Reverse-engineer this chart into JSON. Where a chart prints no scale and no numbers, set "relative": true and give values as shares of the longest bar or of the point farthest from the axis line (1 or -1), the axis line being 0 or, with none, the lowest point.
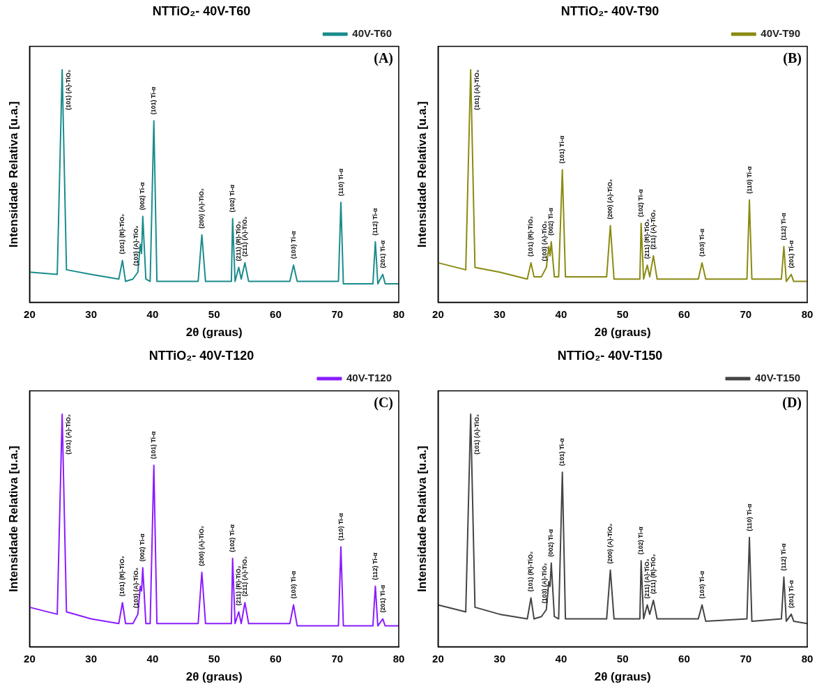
{
  "chart_data": [
    {
      "type": "line",
      "title": "NTTiO₂- 40V-T60",
      "xlabel": "2θ (graus)",
      "ylabel": "Intensidade Relativa [u.a.]",
      "relative": true,
      "xlim": [
        20,
        80
      ],
      "xticks": [
        20,
        30,
        40,
        50,
        60,
        70,
        80
      ],
      "legend": "top right",
      "marker": "none",
      "x": [
        20,
        24.5,
        25.3,
        26,
        30,
        34.5,
        35.1,
        35.6,
        36.8,
        37.6,
        38.0,
        38.2,
        38.4,
        38.9,
        39.6,
        40.2,
        40.7,
        47.4,
        48.0,
        48.6,
        52.8,
        53.0,
        53.4,
        54.0,
        54.4,
        55.0,
        55.6,
        62.3,
        62.9,
        63.5,
        70.2,
        70.6,
        71.0,
        75.8,
        76.2,
        76.6,
        77.4,
        77.8,
        80
      ],
      "series": [
        {
          "name": "40V-T60",
          "color": "#1a8c8c",
          "values": [
            0.13,
            0.12,
            1.0,
            0.14,
            0.12,
            0.1,
            0.18,
            0.09,
            0.1,
            0.13,
            0.25,
            0.21,
            0.37,
            0.1,
            0.09,
            0.78,
            0.09,
            0.09,
            0.29,
            0.09,
            0.09,
            0.36,
            0.09,
            0.15,
            0.1,
            0.17,
            0.09,
            0.09,
            0.16,
            0.09,
            0.09,
            0.43,
            0.08,
            0.08,
            0.26,
            0.08,
            0.12,
            0.08,
            0.08
          ]
        }
      ],
      "annotations": [
        "(A)",
        {
          "text": "(101) (A)-TiO₂",
          "x": 25.3,
          "y": 1.0
        },
        {
          "text": "(101) (R)-TiO₂",
          "x": 35.1,
          "y": 0.18
        },
        {
          "text": "(103) (A)-TiO₂",
          "x": 37.6,
          "y": 0.13
        },
        {
          "text": "(002) Ti-α",
          "x": 38.4,
          "y": 0.37
        },
        {
          "text": "(101) Ti-α",
          "x": 40.2,
          "y": 0.78
        },
        {
          "text": "(200) (A)-TiO₂",
          "x": 48.0,
          "y": 0.29
        },
        {
          "text": "(102) Ti-α",
          "x": 53.0,
          "y": 0.36
        },
        {
          "text": "(211) (R)-TiO₂",
          "x": 54.0,
          "y": 0.15
        },
        {
          "text": "(211) (A)-TiO₂",
          "x": 55.0,
          "y": 0.17
        },
        {
          "text": "(103) Ti-α",
          "x": 62.9,
          "y": 0.16
        },
        {
          "text": "(110) Ti-α",
          "x": 70.6,
          "y": 0.43
        },
        {
          "text": "(112) Ti-α",
          "x": 76.2,
          "y": 0.26
        },
        {
          "text": "(201) Ti-α",
          "x": 77.4,
          "y": 0.12
        }
      ]
    },
    {
      "type": "line",
      "title": "NTTiO₂- 40V-T90",
      "xlabel": "2θ (graus)",
      "ylabel": "Intensidade Relativa [u.a.]",
      "relative": true,
      "xlim": [
        20,
        80
      ],
      "xticks": [
        20,
        30,
        40,
        50,
        60,
        70,
        80
      ],
      "legend": "top right",
      "marker": "none",
      "x": [
        20,
        24.5,
        25.3,
        26,
        30,
        34.5,
        35.1,
        35.6,
        36.8,
        37.6,
        38.0,
        38.2,
        38.4,
        38.9,
        39.6,
        40.2,
        40.7,
        47.4,
        48.0,
        48.6,
        52.8,
        53.0,
        53.4,
        54.0,
        54.4,
        55.0,
        55.6,
        62.3,
        62.9,
        63.5,
        70.2,
        70.6,
        71.0,
        75.8,
        76.2,
        76.6,
        77.4,
        77.8,
        80
      ],
      "series": [
        {
          "name": "40V-T90",
          "color": "#8a8a12",
          "values": [
            0.17,
            0.14,
            1.0,
            0.15,
            0.13,
            0.1,
            0.17,
            0.11,
            0.11,
            0.15,
            0.24,
            0.2,
            0.26,
            0.11,
            0.11,
            0.57,
            0.11,
            0.11,
            0.33,
            0.1,
            0.1,
            0.34,
            0.1,
            0.16,
            0.11,
            0.2,
            0.1,
            0.1,
            0.17,
            0.1,
            0.1,
            0.44,
            0.1,
            0.1,
            0.24,
            0.09,
            0.12,
            0.09,
            0.09
          ]
        }
      ],
      "annotations": [
        "(B)",
        {
          "text": "(101) (A)-TiO₂",
          "x": 25.3,
          "y": 1.0
        },
        {
          "text": "(101) (R)-TiO₂",
          "x": 35.1,
          "y": 0.17
        },
        {
          "text": "(103) (A)-TiO₂",
          "x": 37.6,
          "y": 0.15
        },
        {
          "text": "(002) Ti-α",
          "x": 38.4,
          "y": 0.26
        },
        {
          "text": "(101) Ti-α",
          "x": 40.2,
          "y": 0.57
        },
        {
          "text": "(200) (A)-TiO₂",
          "x": 48.0,
          "y": 0.33
        },
        {
          "text": "(102) Ti-α",
          "x": 53.0,
          "y": 0.34
        },
        {
          "text": "(211) (R)-TiO₂",
          "x": 54.0,
          "y": 0.16
        },
        {
          "text": "(211) (A)-TiO₂",
          "x": 55.0,
          "y": 0.2
        },
        {
          "text": "(103) Ti-α",
          "x": 62.9,
          "y": 0.17
        },
        {
          "text": "(110) Ti-α",
          "x": 70.6,
          "y": 0.44
        },
        {
          "text": "(112) Ti-α",
          "x": 76.2,
          "y": 0.24
        },
        {
          "text": "(201) Ti-α",
          "x": 77.4,
          "y": 0.12
        }
      ]
    },
    {
      "type": "line",
      "title": "NTTiO₂- 40V-T120",
      "xlabel": "2θ (graus)",
      "ylabel": "Intensidade Relativa [u.a.]",
      "relative": true,
      "xlim": [
        20,
        80
      ],
      "xticks": [
        20,
        30,
        40,
        50,
        60,
        70,
        80
      ],
      "legend": "top right",
      "marker": "none",
      "x": [
        20,
        24.5,
        25.3,
        26,
        30,
        34.5,
        35.1,
        35.6,
        36.8,
        37.6,
        38.0,
        38.2,
        38.4,
        38.9,
        39.6,
        40.2,
        40.7,
        47.4,
        48.0,
        48.6,
        52.8,
        53.0,
        53.4,
        54.0,
        54.4,
        55.0,
        55.6,
        62.3,
        62.9,
        63.5,
        70.2,
        70.6,
        71.0,
        75.8,
        76.2,
        76.6,
        77.4,
        77.8,
        80
      ],
      "series": [
        {
          "name": "40V-T120",
          "color": "#8a1cff",
          "values": [
            0.17,
            0.14,
            1.0,
            0.15,
            0.12,
            0.1,
            0.19,
            0.1,
            0.1,
            0.14,
            0.26,
            0.24,
            0.34,
            0.1,
            0.1,
            0.78,
            0.1,
            0.1,
            0.32,
            0.1,
            0.1,
            0.38,
            0.1,
            0.15,
            0.1,
            0.19,
            0.1,
            0.1,
            0.18,
            0.09,
            0.09,
            0.43,
            0.09,
            0.09,
            0.26,
            0.09,
            0.12,
            0.09,
            0.09
          ]
        }
      ],
      "annotations": [
        "(C)",
        {
          "text": "(101) (A)-TiO₂",
          "x": 25.3,
          "y": 1.0
        },
        {
          "text": "(101) (R)-TiO₂",
          "x": 35.1,
          "y": 0.19
        },
        {
          "text": "(103) (A)-TiO₂",
          "x": 37.6,
          "y": 0.14
        },
        {
          "text": "(002) Ti-α",
          "x": 38.4,
          "y": 0.34
        },
        {
          "text": "(101) Ti-α",
          "x": 40.2,
          "y": 0.78
        },
        {
          "text": "(200) (A)-TiO₂",
          "x": 48.0,
          "y": 0.32
        },
        {
          "text": "(102) Ti-α",
          "x": 53.0,
          "y": 0.38
        },
        {
          "text": "(211) (R)-TiO₂",
          "x": 54.0,
          "y": 0.15
        },
        {
          "text": "(211) (A)-TiO₂",
          "x": 55.0,
          "y": 0.19
        },
        {
          "text": "(103) Ti-α",
          "x": 62.9,
          "y": 0.18
        },
        {
          "text": "(110) Ti-α",
          "x": 70.6,
          "y": 0.43
        },
        {
          "text": "(112) Ti-α",
          "x": 76.2,
          "y": 0.26
        },
        {
          "text": "(201) Ti-α",
          "x": 77.4,
          "y": 0.12
        }
      ]
    },
    {
      "type": "line",
      "title": "NTTiO₂- 40V-T150",
      "xlabel": "2θ (graus)",
      "ylabel": "Intensidade Relativa [u.a.]",
      "relative": true,
      "xlim": [
        20,
        80
      ],
      "xticks": [
        20,
        30,
        40,
        50,
        60,
        70,
        80
      ],
      "legend": "top right",
      "marker": "none",
      "x": [
        20,
        24.5,
        25.3,
        26,
        30,
        34.5,
        35.1,
        35.6,
        36.8,
        37.6,
        38.0,
        38.2,
        38.4,
        38.9,
        39.6,
        40.2,
        40.7,
        47.4,
        48.0,
        48.6,
        52.8,
        53.0,
        53.4,
        54.0,
        54.4,
        55.0,
        55.6,
        62.3,
        62.9,
        63.5,
        70.2,
        70.6,
        71.0,
        75.8,
        76.2,
        76.6,
        77.4,
        77.8,
        80
      ],
      "series": [
        {
          "name": "40V-T150",
          "color": "#444444",
          "values": [
            0.18,
            0.15,
            1.0,
            0.17,
            0.14,
            0.12,
            0.21,
            0.12,
            0.13,
            0.16,
            0.28,
            0.26,
            0.36,
            0.13,
            0.12,
            0.75,
            0.12,
            0.12,
            0.33,
            0.12,
            0.12,
            0.37,
            0.12,
            0.18,
            0.14,
            0.2,
            0.12,
            0.12,
            0.18,
            0.11,
            0.12,
            0.47,
            0.11,
            0.12,
            0.3,
            0.11,
            0.14,
            0.11,
            0.1
          ]
        }
      ],
      "annotations": [
        "(D)",
        {
          "text": "(101) (A)-TiO₂",
          "x": 25.3,
          "y": 1.0
        },
        {
          "text": "(101) (R)-TiO₂",
          "x": 35.1,
          "y": 0.21
        },
        {
          "text": "(103) (A)-TiO₂",
          "x": 37.6,
          "y": 0.16
        },
        {
          "text": "(002) Ti-α",
          "x": 38.4,
          "y": 0.36
        },
        {
          "text": "(101) Ti-α",
          "x": 40.2,
          "y": 0.75
        },
        {
          "text": "(200) (A)-TiO₂",
          "x": 48.0,
          "y": 0.33
        },
        {
          "text": "(102) Ti-α",
          "x": 53.0,
          "y": 0.37
        },
        {
          "text": "(211) (A)-TiO₂",
          "x": 54.0,
          "y": 0.18
        },
        {
          "text": "(211) (R)-TiO₂",
          "x": 55.0,
          "y": 0.2
        },
        {
          "text": "(103) Ti-α",
          "x": 62.9,
          "y": 0.18
        },
        {
          "text": "(110) Ti-α",
          "x": 70.6,
          "y": 0.47
        },
        {
          "text": "(112) Ti-α",
          "x": 76.2,
          "y": 0.3
        },
        {
          "text": "(201) Ti-α",
          "x": 77.4,
          "y": 0.14
        }
      ]
    }
  ]
}
